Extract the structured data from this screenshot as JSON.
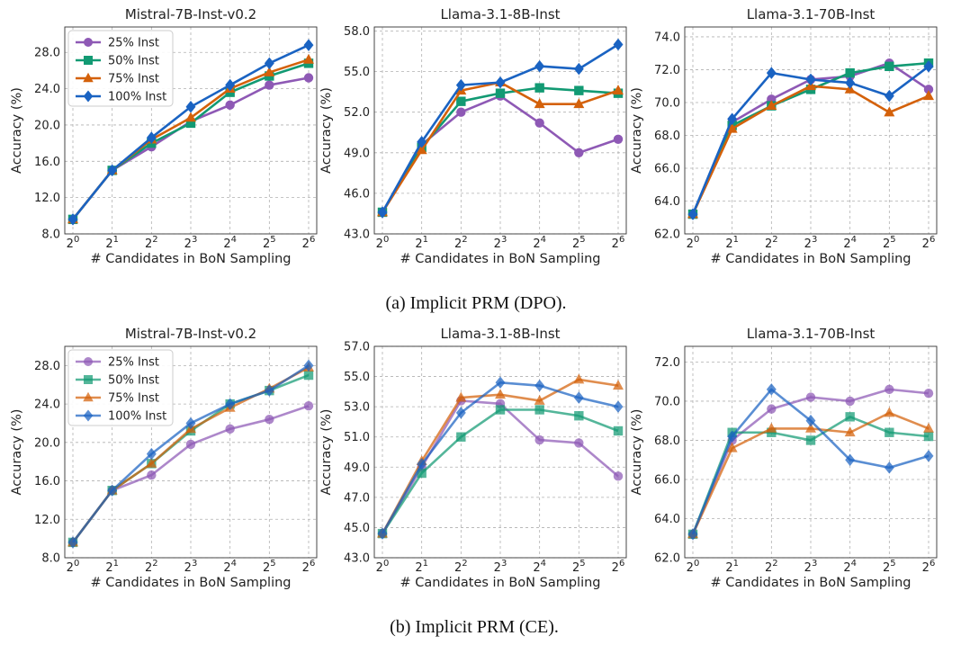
{
  "figure": {
    "xlabel": "# Candidates in BoN Sampling",
    "ylabel": "Accuracy (%)",
    "x_base": "2",
    "x_exponents": [
      "0",
      "1",
      "2",
      "3",
      "4",
      "5",
      "6"
    ]
  },
  "series_style": [
    {
      "name": "25% Inst",
      "color": "#8E59B5",
      "marker": "circle"
    },
    {
      "name": "50% Inst",
      "color": "#129A73",
      "marker": "square"
    },
    {
      "name": "75% Inst",
      "color": "#D4610A",
      "marker": "triangle"
    },
    {
      "name": "100% Inst",
      "color": "#1A63C2",
      "marker": "diamond"
    }
  ],
  "rows": [
    {
      "caption": "(a) Implicit PRM (DPO).",
      "alpha": 1.0
    },
    {
      "caption": "(b) Implicit PRM (CE).",
      "alpha": 0.72
    }
  ],
  "chart_data": [
    {
      "type": "line",
      "row": 0,
      "col": 0,
      "legend": "top-left",
      "title": "Mistral-7B-Inst-v0.2",
      "xlabel": "# Candidates in BoN Sampling",
      "ylabel": "Accuracy (%)",
      "x": [
        1,
        2,
        4,
        8,
        16,
        32,
        64
      ],
      "ylim": [
        8.0,
        30.8
      ],
      "yticks": [
        "8.0",
        "12.0",
        "16.0",
        "20.0",
        "24.0",
        "28.0"
      ],
      "series": [
        {
          "name": "25% Inst",
          "values": [
            9.6,
            15.0,
            17.6,
            20.4,
            22.2,
            24.4,
            25.2
          ]
        },
        {
          "name": "50% Inst",
          "values": [
            9.6,
            15.0,
            18.0,
            20.2,
            23.6,
            25.4,
            26.8
          ]
        },
        {
          "name": "75% Inst",
          "values": [
            9.6,
            15.0,
            18.4,
            20.8,
            24.0,
            25.8,
            27.2
          ]
        },
        {
          "name": "100% Inst",
          "values": [
            9.6,
            15.0,
            18.6,
            22.0,
            24.4,
            26.8,
            28.8
          ]
        }
      ]
    },
    {
      "type": "line",
      "row": 0,
      "col": 1,
      "title": "Llama-3.1-8B-Inst",
      "xlabel": "# Candidates in BoN Sampling",
      "ylabel": "Accuracy (%)",
      "x": [
        1,
        2,
        4,
        8,
        16,
        32,
        64
      ],
      "ylim": [
        43.0,
        58.3
      ],
      "yticks": [
        "43.0",
        "46.0",
        "49.0",
        "52.0",
        "55.0",
        "58.0"
      ],
      "series": [
        {
          "name": "25% Inst",
          "values": [
            44.6,
            49.6,
            52.0,
            53.2,
            51.2,
            49.0,
            50.0
          ]
        },
        {
          "name": "50% Inst",
          "values": [
            44.6,
            49.4,
            52.8,
            53.4,
            53.8,
            53.6,
            53.4
          ]
        },
        {
          "name": "75% Inst",
          "values": [
            44.6,
            49.2,
            53.6,
            54.2,
            52.6,
            52.6,
            53.6
          ]
        },
        {
          "name": "100% Inst",
          "values": [
            44.6,
            49.8,
            54.0,
            54.2,
            55.4,
            55.2,
            57.0
          ]
        }
      ]
    },
    {
      "type": "line",
      "row": 0,
      "col": 2,
      "title": "Llama-3.1-70B-Inst",
      "xlabel": "# Candidates in BoN Sampling",
      "ylabel": "Accuracy (%)",
      "x": [
        1,
        2,
        4,
        8,
        16,
        32,
        64
      ],
      "ylim": [
        62.0,
        74.6
      ],
      "yticks": [
        "62.0",
        "64.0",
        "66.0",
        "68.0",
        "70.0",
        "72.0",
        "74.0"
      ],
      "series": [
        {
          "name": "25% Inst",
          "values": [
            63.2,
            68.8,
            70.2,
            71.4,
            71.6,
            72.4,
            70.8
          ]
        },
        {
          "name": "50% Inst",
          "values": [
            63.2,
            68.6,
            69.8,
            70.8,
            71.8,
            72.2,
            72.4
          ]
        },
        {
          "name": "75% Inst",
          "values": [
            63.2,
            68.4,
            69.8,
            71.0,
            70.8,
            69.4,
            70.4
          ]
        },
        {
          "name": "100% Inst",
          "values": [
            63.2,
            69.0,
            71.8,
            71.4,
            71.2,
            70.4,
            72.2
          ]
        }
      ]
    },
    {
      "type": "line",
      "row": 1,
      "col": 0,
      "legend": "top-left",
      "title": "Mistral-7B-Inst-v0.2",
      "xlabel": "# Candidates in BoN Sampling",
      "ylabel": "Accuracy (%)",
      "x": [
        1,
        2,
        4,
        8,
        16,
        32,
        64
      ],
      "ylim": [
        8.0,
        30.0
      ],
      "yticks": [
        "8.0",
        "12.0",
        "16.0",
        "20.0",
        "24.0",
        "28.0"
      ],
      "series": [
        {
          "name": "25% Inst",
          "values": [
            9.6,
            15.0,
            16.6,
            19.8,
            21.4,
            22.4,
            23.8
          ]
        },
        {
          "name": "50% Inst",
          "values": [
            9.6,
            15.0,
            17.8,
            21.2,
            24.0,
            25.4,
            27.0
          ]
        },
        {
          "name": "75% Inst",
          "values": [
            9.6,
            15.0,
            17.8,
            21.4,
            23.6,
            25.6,
            27.8
          ]
        },
        {
          "name": "100% Inst",
          "values": [
            9.6,
            15.0,
            18.8,
            22.0,
            24.0,
            25.4,
            28.0
          ]
        }
      ]
    },
    {
      "type": "line",
      "row": 1,
      "col": 1,
      "title": "Llama-3.1-8B-Inst",
      "xlabel": "# Candidates in BoN Sampling",
      "ylabel": "Accuracy (%)",
      "x": [
        1,
        2,
        4,
        8,
        16,
        32,
        64
      ],
      "ylim": [
        43.0,
        57.0
      ],
      "yticks": [
        "43.0",
        "45.0",
        "47.0",
        "49.0",
        "51.0",
        "53.0",
        "55.0",
        "57.0"
      ],
      "series": [
        {
          "name": "25% Inst",
          "values": [
            44.6,
            49.0,
            53.4,
            53.2,
            50.8,
            50.6,
            48.4
          ]
        },
        {
          "name": "50% Inst",
          "values": [
            44.6,
            48.6,
            51.0,
            52.8,
            52.8,
            52.4,
            51.4
          ]
        },
        {
          "name": "75% Inst",
          "values": [
            44.6,
            49.4,
            53.6,
            53.8,
            53.4,
            54.8,
            54.4
          ]
        },
        {
          "name": "100% Inst",
          "values": [
            44.6,
            49.2,
            52.6,
            54.6,
            54.4,
            53.6,
            53.0
          ]
        }
      ]
    },
    {
      "type": "line",
      "row": 1,
      "col": 2,
      "title": "Llama-3.1-70B-Inst",
      "xlabel": "# Candidates in BoN Sampling",
      "ylabel": "Accuracy (%)",
      "x": [
        1,
        2,
        4,
        8,
        16,
        32,
        64
      ],
      "ylim": [
        62.0,
        72.8
      ],
      "yticks": [
        "62.0",
        "64.0",
        "66.0",
        "68.0",
        "70.0",
        "72.0"
      ],
      "series": [
        {
          "name": "25% Inst",
          "values": [
            63.2,
            68.0,
            69.6,
            70.2,
            70.0,
            70.6,
            70.4
          ]
        },
        {
          "name": "50% Inst",
          "values": [
            63.2,
            68.4,
            68.4,
            68.0,
            69.2,
            68.4,
            68.2
          ]
        },
        {
          "name": "75% Inst",
          "values": [
            63.2,
            67.6,
            68.6,
            68.6,
            68.4,
            69.4,
            68.6
          ]
        },
        {
          "name": "100% Inst",
          "values": [
            63.2,
            68.2,
            70.6,
            69.0,
            67.0,
            66.6,
            67.2
          ]
        }
      ]
    }
  ]
}
